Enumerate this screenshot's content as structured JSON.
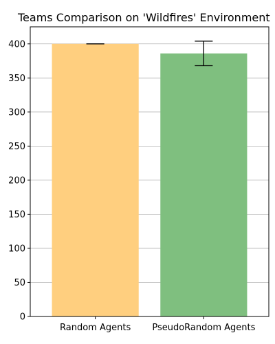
{
  "chart_data": {
    "type": "bar",
    "title": "Teams Comparison on 'Wildfires' Environment",
    "xlabel": "",
    "ylabel": "",
    "categories": [
      "Random Agents",
      "PseudoRandom Agents"
    ],
    "values": [
      400,
      386
    ],
    "errors": [
      0,
      18
    ],
    "bar_colors": [
      "#ffcf7f",
      "#7fbf7f"
    ],
    "ylim": [
      0,
      425
    ],
    "yticks": [
      0,
      50,
      100,
      150,
      200,
      250,
      300,
      350,
      400
    ],
    "grid": "y"
  }
}
